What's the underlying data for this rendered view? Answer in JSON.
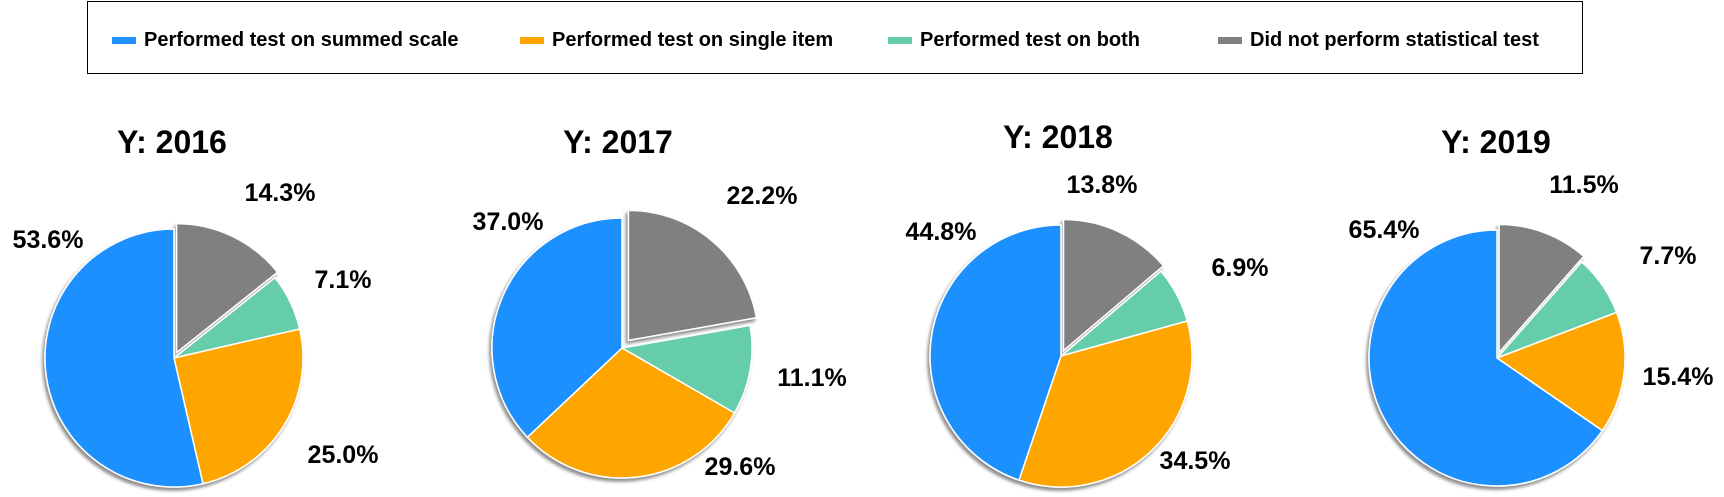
{
  "legend": {
    "items": [
      {
        "label": "Performed test on summed scale",
        "color": "#1E90FF"
      },
      {
        "label": "Performed test on single item",
        "color": "#FFA500"
      },
      {
        "label": "Performed test on both",
        "color": "#66CDAA"
      },
      {
        "label": "Did not perform statistical test",
        "color": "#808080"
      }
    ]
  },
  "chart_data": [
    {
      "type": "pie",
      "title": "Y: 2016",
      "categories": [
        "Performed test on summed scale",
        "Performed test on single item",
        "Performed test on both",
        "Did not perform statistical test"
      ],
      "values": [
        53.6,
        25.0,
        7.1,
        14.3
      ],
      "labels": [
        "53.6%",
        "25.0%",
        "7.1%",
        "14.3%"
      ],
      "exploded": "Did not perform statistical test"
    },
    {
      "type": "pie",
      "title": "Y: 2017",
      "categories": [
        "Performed test on summed scale",
        "Performed test on single item",
        "Performed test on both",
        "Did not perform statistical test"
      ],
      "values": [
        37.0,
        29.6,
        11.1,
        22.2
      ],
      "labels": [
        "37.0%",
        "29.6%",
        "11.1%",
        "22.2%"
      ],
      "exploded": "Did not perform statistical test"
    },
    {
      "type": "pie",
      "title": "Y: 2018",
      "categories": [
        "Performed test on summed scale",
        "Performed test on single item",
        "Performed test on both",
        "Did not perform statistical test"
      ],
      "values": [
        44.8,
        34.5,
        6.9,
        13.8
      ],
      "labels": [
        "44.8%",
        "34.5%",
        "6.9%",
        "13.8%"
      ],
      "exploded": "Did not perform statistical test"
    },
    {
      "type": "pie",
      "title": "Y: 2019",
      "categories": [
        "Performed test on summed scale",
        "Performed test on single item",
        "Performed test on both",
        "Did not perform statistical test"
      ],
      "values": [
        65.4,
        15.4,
        7.7,
        11.5
      ],
      "labels": [
        "65.4%",
        "15.4%",
        "7.7%",
        "11.5%"
      ],
      "exploded": "Did not perform statistical test"
    }
  ]
}
